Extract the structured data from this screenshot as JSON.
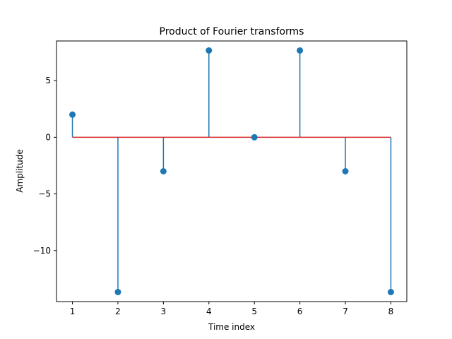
{
  "chart_data": {
    "type": "stem",
    "title": "Product of Fourier transforms",
    "xlabel": "Time index",
    "ylabel": "Amplitude",
    "x": [
      1,
      2,
      3,
      4,
      5,
      6,
      7,
      8
    ],
    "values": [
      2.0,
      -13.66,
      -3.0,
      7.66,
      0.0,
      7.66,
      -3.0,
      -13.66
    ],
    "baseline": 0,
    "xlim": [
      0.65,
      8.35
    ],
    "ylim": [
      -14.5,
      8.5
    ],
    "xticks": [
      1,
      2,
      3,
      4,
      5,
      6,
      7,
      8
    ],
    "yticks": [
      -10,
      -5,
      0,
      5
    ],
    "ytick_labels": [
      "−10",
      "−5",
      "0",
      "5"
    ],
    "grid": false,
    "colors": {
      "stem": "#1f77b4",
      "marker": "#1f77b4",
      "baseline": "#d62728",
      "axes": "#000000"
    }
  }
}
